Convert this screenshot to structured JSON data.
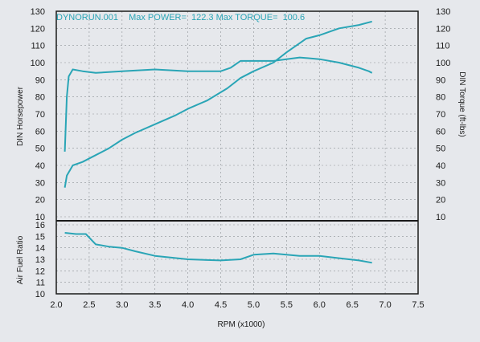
{
  "header": {
    "run_name": "DYNORUN.001",
    "max_power_label": "Max POWER=",
    "max_power_value": "122.3",
    "max_torque_label": "Max TORQUE=",
    "max_torque_value": "100.6"
  },
  "colors": {
    "line": "#2aa5b6",
    "paper": "#e6e8ec",
    "grid": "#8d9196",
    "ink": "#1a1a1a"
  },
  "chart_data": [
    {
      "type": "line",
      "panel": "power-torque",
      "xlabel": "RPM (x1000)",
      "ylabel_left": "DIN Horsepower",
      "ylabel_right": "DIN Torque (ft-lbs)",
      "xlim": [
        2.0,
        7.5
      ],
      "ylim_left": [
        10,
        130
      ],
      "ylim_right": [
        10,
        130
      ],
      "x_ticks": [
        "2.0",
        "2.5",
        "3.0",
        "3.5",
        "4.0",
        "4.5",
        "5.0",
        "5.5",
        "6.0",
        "6.5",
        "7.0",
        "7.5"
      ],
      "left_ticks": [
        "10",
        "20",
        "30",
        "40",
        "50",
        "60",
        "70",
        "80",
        "90",
        "100",
        "110",
        "120",
        "130"
      ],
      "right_ticks": [
        "10",
        "20",
        "30",
        "40",
        "50",
        "60",
        "70",
        "80",
        "90",
        "100",
        "110",
        "120",
        "130"
      ],
      "grid": true,
      "series": [
        {
          "axis": "right",
          "points": [
            [
              2.13,
              48
            ],
            [
              2.16,
              80
            ],
            [
              2.19,
              92
            ],
            [
              2.25,
              96
            ],
            [
              2.4,
              95
            ],
            [
              2.6,
              94
            ],
            [
              3.0,
              95
            ],
            [
              3.5,
              96
            ],
            [
              4.0,
              95
            ],
            [
              4.5,
              95
            ],
            [
              4.65,
              97
            ],
            [
              4.8,
              101
            ],
            [
              5.0,
              101
            ],
            [
              5.3,
              101
            ],
            [
              5.7,
              103
            ],
            [
              6.0,
              102
            ],
            [
              6.3,
              100
            ],
            [
              6.6,
              97
            ],
            [
              6.75,
              95
            ],
            [
              6.8,
              94
            ]
          ]
        },
        {
          "axis": "left",
          "points": [
            [
              2.13,
              27
            ],
            [
              2.16,
              34
            ],
            [
              2.25,
              40
            ],
            [
              2.4,
              42
            ],
            [
              2.6,
              46
            ],
            [
              2.8,
              50
            ],
            [
              3.0,
              55
            ],
            [
              3.2,
              59
            ],
            [
              3.5,
              64
            ],
            [
              3.8,
              69
            ],
            [
              4.0,
              73
            ],
            [
              4.3,
              78
            ],
            [
              4.6,
              85
            ],
            [
              4.8,
              91
            ],
            [
              5.0,
              95
            ],
            [
              5.3,
              100
            ],
            [
              5.5,
              106
            ],
            [
              5.8,
              114
            ],
            [
              6.0,
              116
            ],
            [
              6.3,
              120
            ],
            [
              6.6,
              122
            ],
            [
              6.8,
              124
            ]
          ]
        }
      ]
    },
    {
      "type": "line",
      "panel": "air-fuel",
      "ylabel": "Air Fuel Ratio",
      "xlim": [
        2.0,
        7.5
      ],
      "ylim": [
        10,
        16
      ],
      "y_ticks": [
        "10",
        "11",
        "12",
        "13",
        "14",
        "15",
        "16"
      ],
      "grid": true,
      "series": [
        {
          "points": [
            [
              2.13,
              15.3
            ],
            [
              2.3,
              15.2
            ],
            [
              2.45,
              15.2
            ],
            [
              2.6,
              14.3
            ],
            [
              2.8,
              14.1
            ],
            [
              3.0,
              14.0
            ],
            [
              3.2,
              13.7
            ],
            [
              3.5,
              13.3
            ],
            [
              4.0,
              13.0
            ],
            [
              4.5,
              12.9
            ],
            [
              4.8,
              13.0
            ],
            [
              5.0,
              13.4
            ],
            [
              5.3,
              13.5
            ],
            [
              5.7,
              13.3
            ],
            [
              6.0,
              13.3
            ],
            [
              6.3,
              13.1
            ],
            [
              6.6,
              12.9
            ],
            [
              6.8,
              12.7
            ]
          ]
        }
      ]
    }
  ]
}
